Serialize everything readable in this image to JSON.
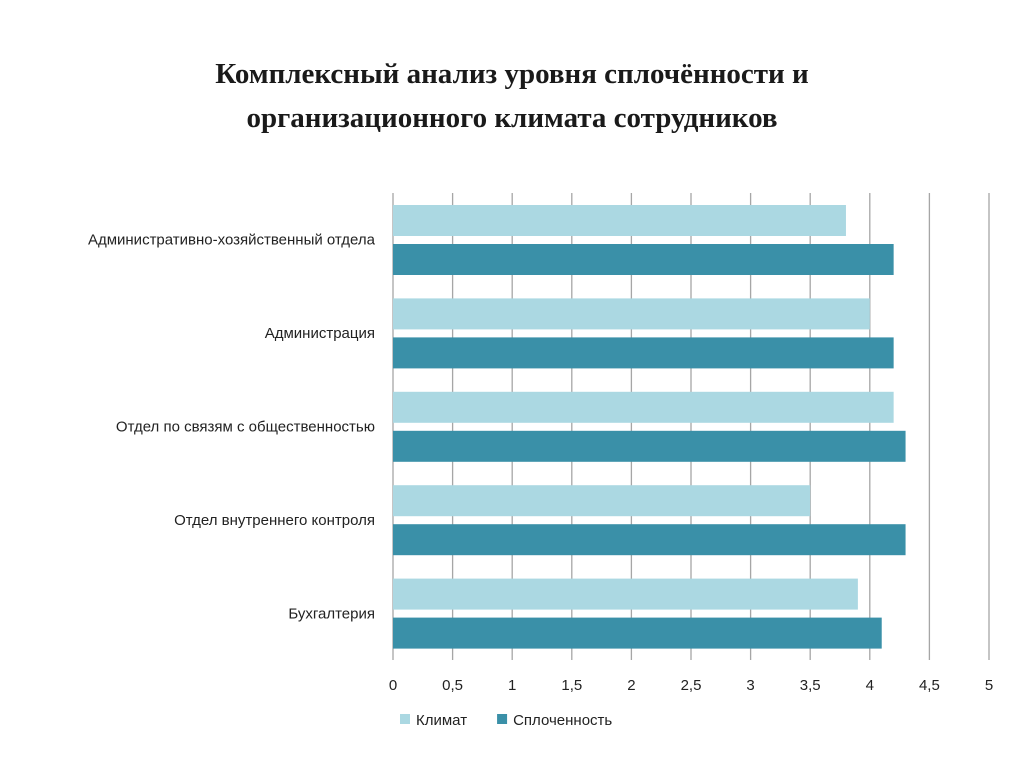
{
  "chart_data": {
    "type": "bar",
    "orientation": "horizontal",
    "title_lines": [
      "Комплексный анализ уровня сплочённости и",
      "организационного климата сотрудников"
    ],
    "categories": [
      "Административно-хозяйственный отдела",
      "Администрация",
      "Отдел по связям с общественностью",
      "Отдел внутреннего контроля",
      "Бухгалтерия"
    ],
    "series": [
      {
        "name": "Климат",
        "color": "#abd8e2",
        "values": [
          3.8,
          4.0,
          4.2,
          3.5,
          3.9
        ]
      },
      {
        "name": "Сплоченность",
        "color": "#3a90a8",
        "values": [
          4.2,
          4.2,
          4.3,
          4.3,
          4.1
        ]
      }
    ],
    "xlim": [
      0,
      5
    ],
    "ticks": [
      "0",
      "0,5",
      "1",
      "1,5",
      "2",
      "2,5",
      "3",
      "3,5",
      "4",
      "4,5",
      "5"
    ],
    "tick_values": [
      0,
      0.5,
      1,
      1.5,
      2,
      2.5,
      3,
      3.5,
      4,
      4.5,
      5
    ],
    "grid": true,
    "grid_color": "#a6a6a6",
    "legend_position": "bottom"
  }
}
